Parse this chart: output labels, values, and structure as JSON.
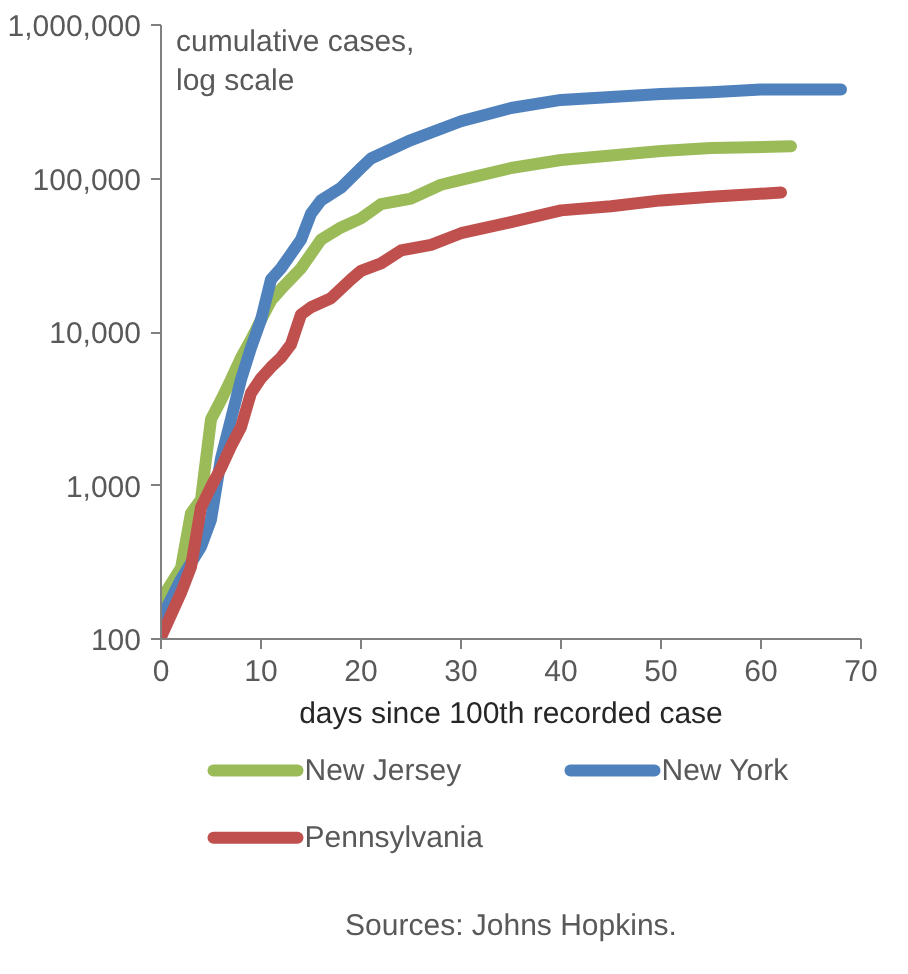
{
  "chart_data": {
    "type": "line",
    "xlabel": "days since 100th recorded case",
    "annotations": [
      "cumulative cases,\nlog scale",
      "Sources: Johns Hopkins."
    ],
    "xlim": [
      0,
      70
    ],
    "xticks": [
      0,
      10,
      20,
      30,
      40,
      50,
      60,
      70
    ],
    "ylim": [
      100,
      1000000
    ],
    "yticks": [
      100,
      {
        "value": 1000,
        "label": "1,000"
      },
      {
        "value": 10000,
        "label": "10,000"
      },
      {
        "value": 100000,
        "label": "100,000"
      },
      {
        "value": 1000000,
        "label": "1,000,000"
      }
    ],
    "log": "y",
    "grid": false,
    "legend": "bottom",
    "marker": "none",
    "line_style": "solid",
    "series": [
      {
        "name": "New Jersey",
        "color": "#9bbb59",
        "x": [
          0,
          2,
          3,
          4,
          5,
          6,
          7,
          8,
          9,
          10,
          11,
          12,
          14,
          16,
          18,
          20,
          22,
          25,
          28,
          30,
          35,
          40,
          50,
          55,
          63
        ],
        "values": [
          180,
          290,
          660,
          810,
          2700,
          3600,
          4900,
          6800,
          8900,
          12000,
          16000,
          19000,
          26000,
          40000,
          48000,
          55000,
          68000,
          74000,
          91000,
          98000,
          117000,
          132000,
          151000,
          158000,
          162000
        ]
      },
      {
        "name": "New York",
        "color": "#4f81bd",
        "x": [
          0,
          2,
          4,
          5,
          6,
          7,
          8,
          9,
          10,
          11,
          12,
          14,
          15,
          16,
          18,
          20,
          21,
          25,
          30,
          35,
          40,
          50,
          55,
          60,
          68
        ],
        "values": [
          135,
          245,
          400,
          600,
          1500,
          2700,
          4900,
          7900,
          12000,
          22000,
          26000,
          40000,
          59000,
          72000,
          87000,
          117000,
          135000,
          178000,
          236000,
          288000,
          325000,
          355000,
          365000,
          380000,
          380000
        ]
      },
      {
        "name": "Pennsylvania",
        "color": "#c0504d",
        "x": [
          0,
          2,
          3,
          4,
          5,
          6,
          7,
          8,
          9,
          10,
          11,
          12,
          13,
          14,
          15,
          17,
          19,
          20,
          22,
          24,
          27,
          30,
          35,
          40,
          45,
          50,
          55,
          62
        ],
        "values": [
          103,
          200,
          295,
          720,
          980,
          1300,
          1800,
          2400,
          4000,
          5000,
          5900,
          6800,
          8300,
          13000,
          14500,
          16600,
          22000,
          25000,
          28000,
          34000,
          37000,
          44000,
          52000,
          62000,
          66000,
          72000,
          76000,
          81000
        ]
      }
    ]
  }
}
